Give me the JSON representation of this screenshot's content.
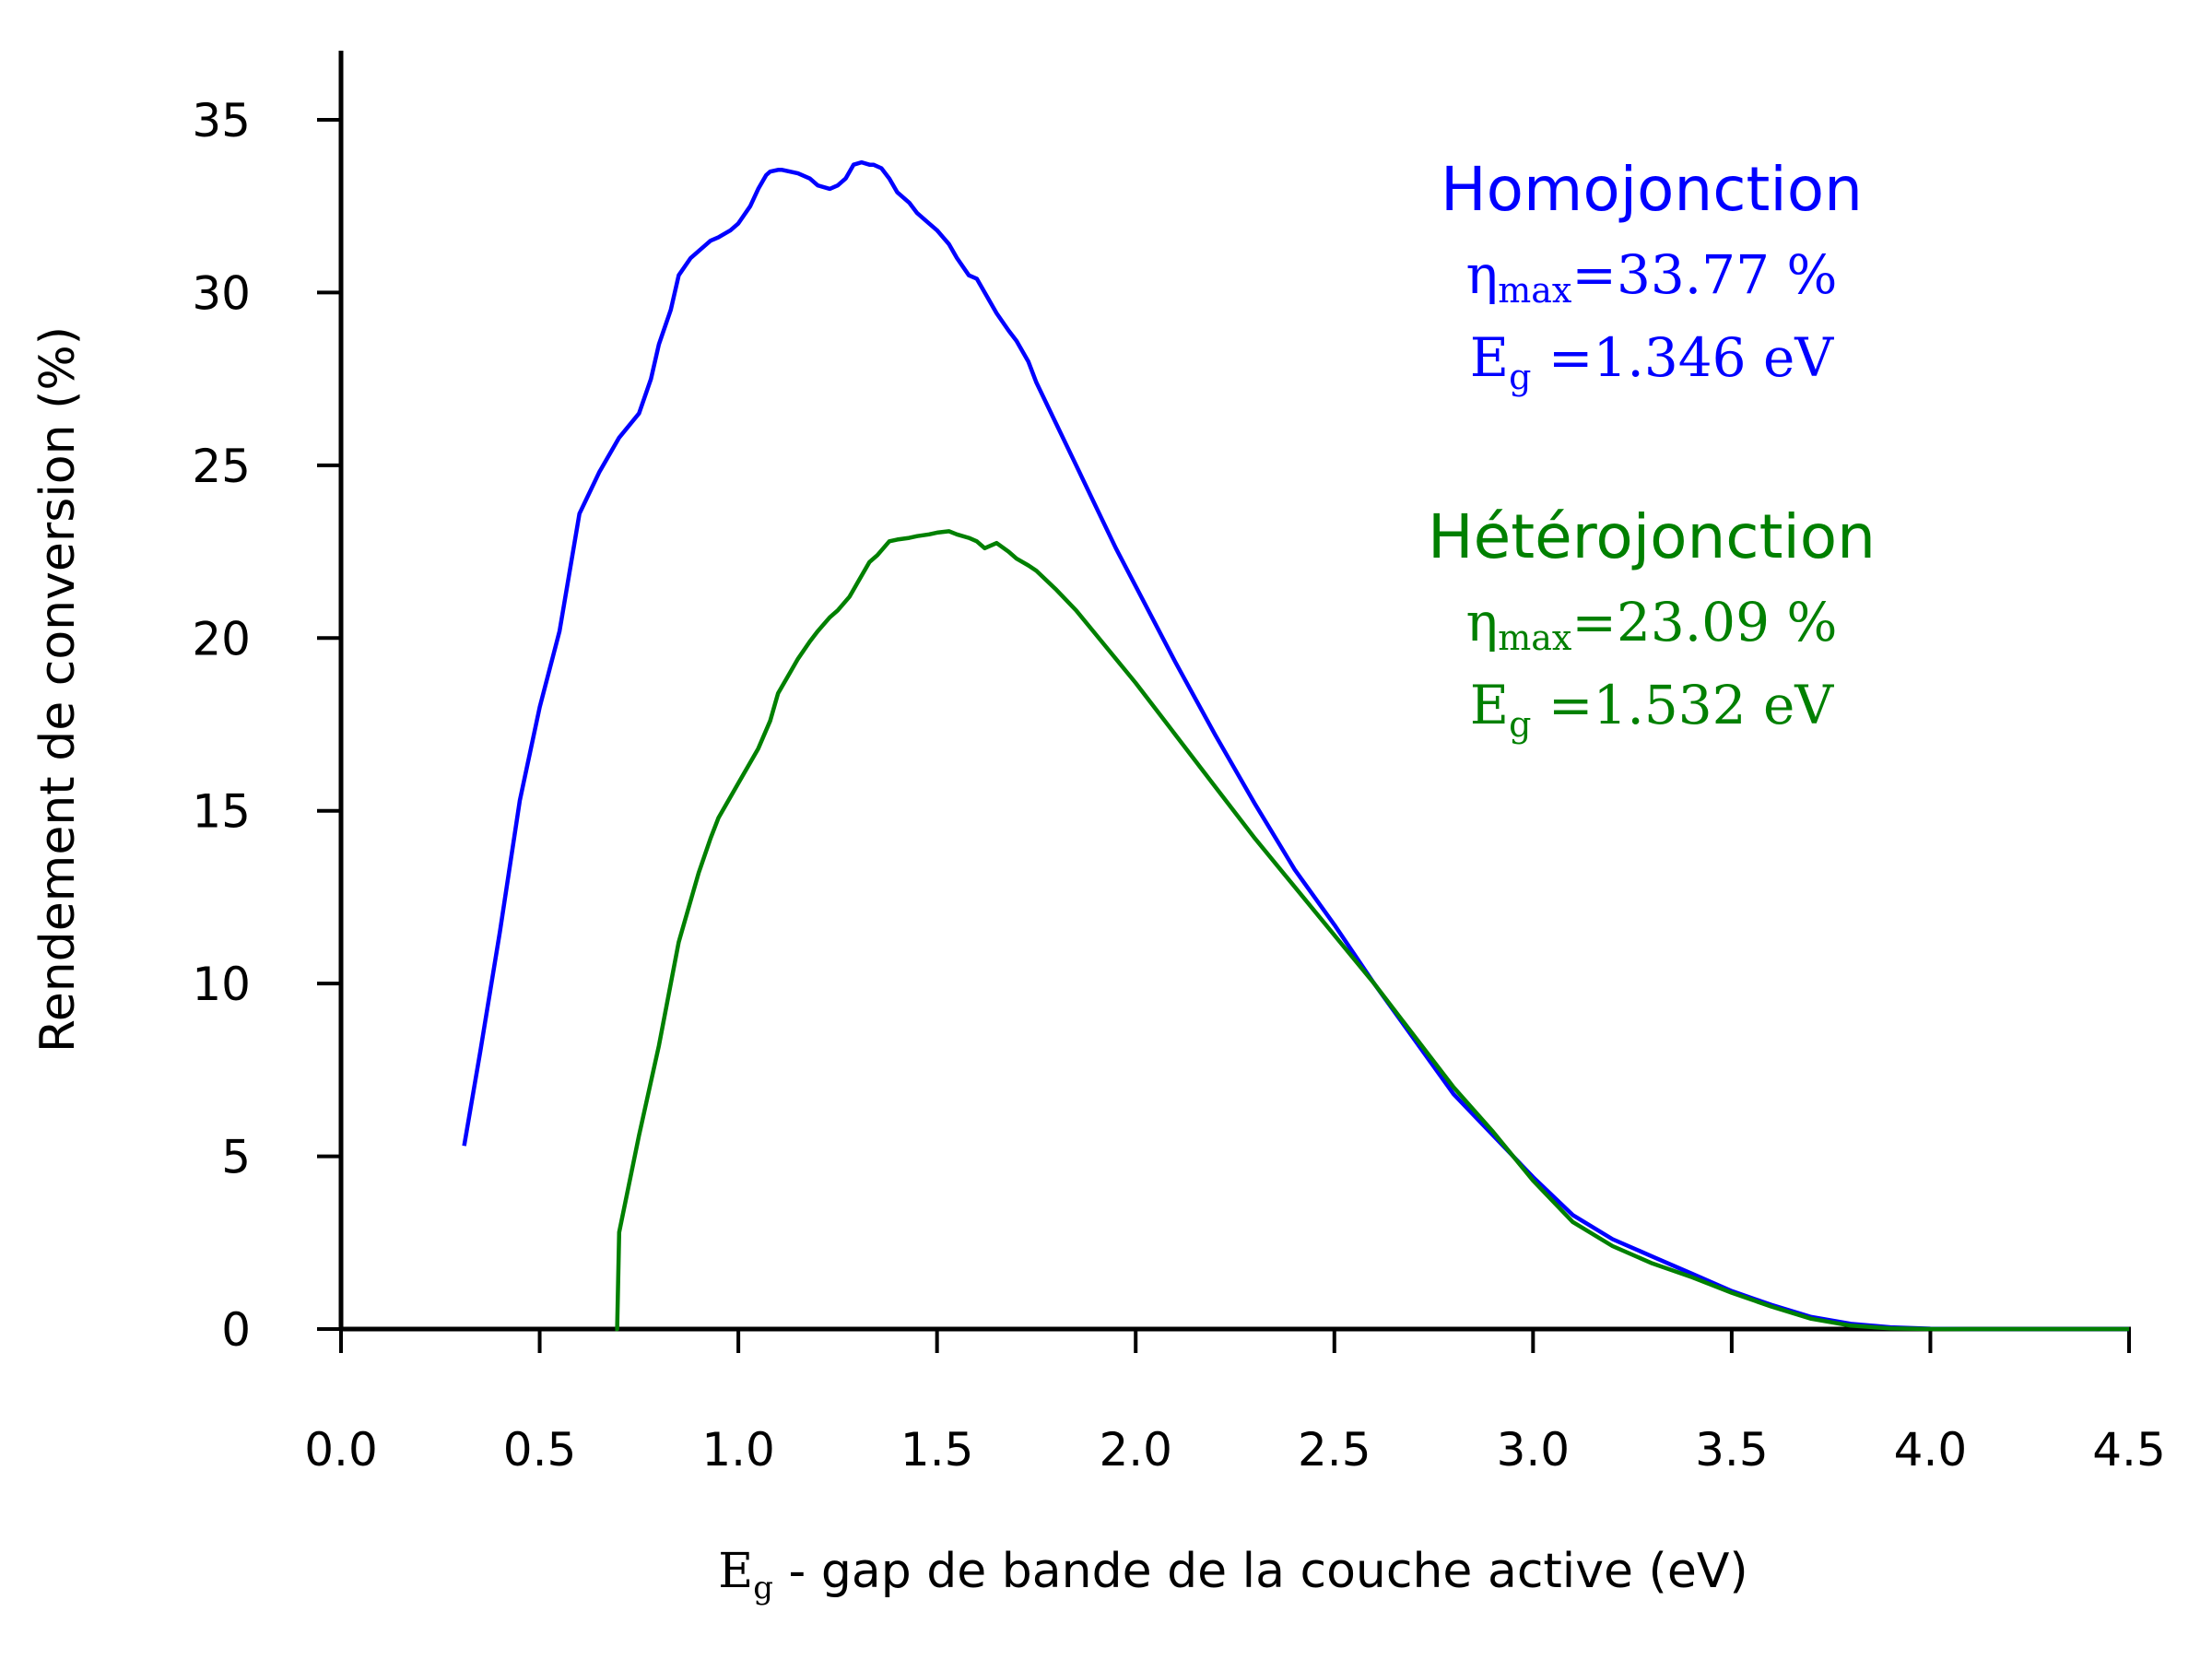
{
  "chart_data": {
    "type": "line",
    "xlabel_symbol": "E",
    "xlabel_sub": "g",
    "xlabel_rest": " - gap de bande de la couche active (eV)",
    "ylabel": "Rendement de conversion (%)",
    "xlim": [
      0,
      4.5
    ],
    "ylim": [
      0,
      37
    ],
    "xticks": [
      0.0,
      0.5,
      1.0,
      1.5,
      2.0,
      2.5,
      3.0,
      3.5,
      4.0,
      4.5
    ],
    "xtick_labels": [
      "0.0",
      "0.5",
      "1.0",
      "1.5",
      "2.0",
      "2.5",
      "3.0",
      "3.5",
      "4.0",
      "4.5"
    ],
    "yticks": [
      0,
      5,
      10,
      15,
      20,
      25,
      30,
      35
    ],
    "ytick_labels": [
      "0",
      "5",
      "10",
      "15",
      "20",
      "25",
      "30",
      "35"
    ],
    "grid": false,
    "series": [
      {
        "name": "Homojonction",
        "color": "#0000ff",
        "annotation": {
          "title": "Homojonction",
          "eta_symbol": "η",
          "eta_sub": "max",
          "eta_value": "=33.77 %",
          "eg_symbol": "E",
          "eg_sub": "g",
          "eg_value": " =1.346 eV"
        },
        "x": [
          0.31,
          0.35,
          0.4,
          0.45,
          0.5,
          0.55,
          0.6,
          0.65,
          0.7,
          0.75,
          0.78,
          0.8,
          0.83,
          0.85,
          0.88,
          0.9,
          0.93,
          0.95,
          0.98,
          1.0,
          1.03,
          1.05,
          1.07,
          1.08,
          1.1,
          1.11,
          1.13,
          1.15,
          1.18,
          1.2,
          1.23,
          1.25,
          1.27,
          1.29,
          1.31,
          1.33,
          1.34,
          1.36,
          1.38,
          1.4,
          1.43,
          1.45,
          1.48,
          1.5,
          1.53,
          1.55,
          1.58,
          1.6,
          1.62,
          1.65,
          1.68,
          1.7,
          1.73,
          1.75,
          1.8,
          1.85,
          1.9,
          1.95,
          2.0,
          2.1,
          2.2,
          2.3,
          2.4,
          2.5,
          2.6,
          2.7,
          2.8,
          2.9,
          3.0,
          3.1,
          3.2,
          3.3,
          3.4,
          3.5,
          3.6,
          3.7,
          3.8,
          3.9,
          4.0,
          4.1,
          4.2,
          4.3,
          4.4,
          4.5
        ],
        "y": [
          5.3,
          8.0,
          11.5,
          15.3,
          18.0,
          20.2,
          23.6,
          24.8,
          25.8,
          26.5,
          27.5,
          28.5,
          29.5,
          30.5,
          31.0,
          31.2,
          31.5,
          31.6,
          31.8,
          32.0,
          32.5,
          33.0,
          33.4,
          33.5,
          33.55,
          33.55,
          33.5,
          33.45,
          33.3,
          33.1,
          33.0,
          33.1,
          33.3,
          33.7,
          33.77,
          33.7,
          33.7,
          33.6,
          33.3,
          32.9,
          32.6,
          32.3,
          32.0,
          31.8,
          31.4,
          31.0,
          30.5,
          30.4,
          30.0,
          29.4,
          28.9,
          28.6,
          28.0,
          27.4,
          26.2,
          25.0,
          23.8,
          22.6,
          21.5,
          19.3,
          17.2,
          15.2,
          13.3,
          11.7,
          10.0,
          8.4,
          6.8,
          5.6,
          4.4,
          3.3,
          2.6,
          2.1,
          1.6,
          1.1,
          0.7,
          0.35,
          0.15,
          0.05,
          0.01,
          0.0,
          0.0,
          0.0,
          0.0,
          0.0
        ]
      },
      {
        "name": "Hétérojonction",
        "color": "#008000",
        "annotation": {
          "title": "Hétérojonction",
          "eta_symbol": "η",
          "eta_sub": "max",
          "eta_value": "=23.09 %",
          "eg_symbol": "E",
          "eg_sub": "g",
          "eg_value": " =1.532 eV"
        },
        "x": [
          0.69,
          0.695,
          0.7,
          0.75,
          0.8,
          0.85,
          0.9,
          0.93,
          0.95,
          1.0,
          1.05,
          1.08,
          1.1,
          1.13,
          1.15,
          1.18,
          1.2,
          1.23,
          1.25,
          1.28,
          1.3,
          1.33,
          1.35,
          1.38,
          1.4,
          1.43,
          1.45,
          1.48,
          1.5,
          1.53,
          1.55,
          1.58,
          1.6,
          1.62,
          1.65,
          1.68,
          1.7,
          1.73,
          1.75,
          1.8,
          1.85,
          1.9,
          1.95,
          2.0,
          2.1,
          2.2,
          2.3,
          2.4,
          2.5,
          2.6,
          2.7,
          2.8,
          2.9,
          3.0,
          3.1,
          3.2,
          3.3,
          3.4,
          3.5,
          3.6,
          3.7,
          3.8,
          3.9,
          4.0,
          4.1,
          4.2,
          4.3,
          4.4,
          4.5
        ],
        "y": [
          0.0,
          0.0,
          2.8,
          5.6,
          8.2,
          11.2,
          13.2,
          14.2,
          14.8,
          15.8,
          16.8,
          17.6,
          18.4,
          19.0,
          19.4,
          19.9,
          20.2,
          20.6,
          20.8,
          21.2,
          21.6,
          22.2,
          22.4,
          22.8,
          22.85,
          22.9,
          22.95,
          23.0,
          23.05,
          23.09,
          23.0,
          22.9,
          22.8,
          22.6,
          22.75,
          22.5,
          22.3,
          22.1,
          21.95,
          21.4,
          20.8,
          20.1,
          19.4,
          18.7,
          17.2,
          15.7,
          14.2,
          12.8,
          11.4,
          10.0,
          8.5,
          7.0,
          5.7,
          4.3,
          3.1,
          2.4,
          1.9,
          1.5,
          1.05,
          0.65,
          0.3,
          0.1,
          0.02,
          0.0,
          0.0,
          0.0,
          0.0,
          0.0,
          0.0
        ]
      }
    ]
  }
}
